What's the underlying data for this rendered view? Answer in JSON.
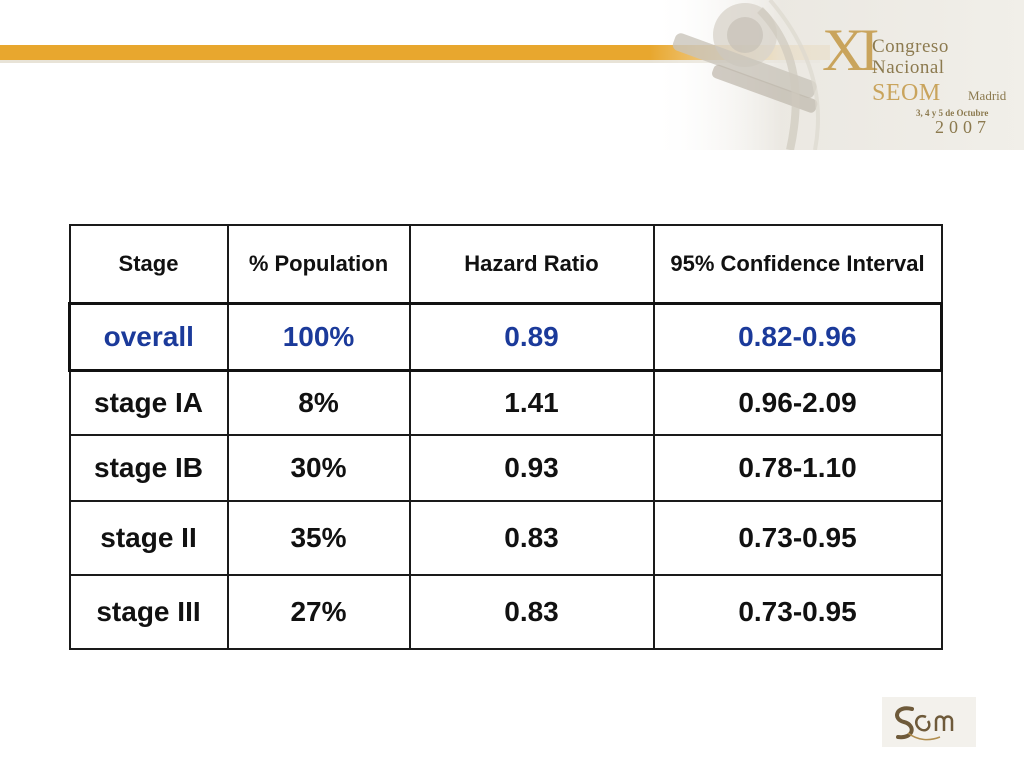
{
  "header": {
    "logo_xi": "XI",
    "logo_line1": "Congreso",
    "logo_line2": "Nacional",
    "logo_org": "SEOM",
    "logo_city": "Madrid",
    "logo_dates": "3, 4 y 5 de Octubre",
    "logo_year": "2007",
    "accent_color": "#e8a72e",
    "logo_color": "#c9a45c"
  },
  "table": {
    "headers": [
      "Stage",
      "% Population",
      "Hazard Ratio",
      "95% Confidence Interval"
    ],
    "rows": [
      [
        "overall",
        "100%",
        "0.89",
        "0.82-0.96"
      ],
      [
        "stage IA",
        "8%",
        "1.41",
        "0.96-2.09"
      ],
      [
        "stage IB",
        "30%",
        "0.93",
        "0.78-1.10"
      ],
      [
        "stage II",
        "35%",
        "0.83",
        "0.73-0.95"
      ],
      [
        "stage III",
        "27%",
        "0.83",
        "0.73-0.95"
      ]
    ],
    "highlight_color": "#1b3a9a"
  },
  "footer": {
    "logo_icon": "seom-monogram-icon"
  }
}
